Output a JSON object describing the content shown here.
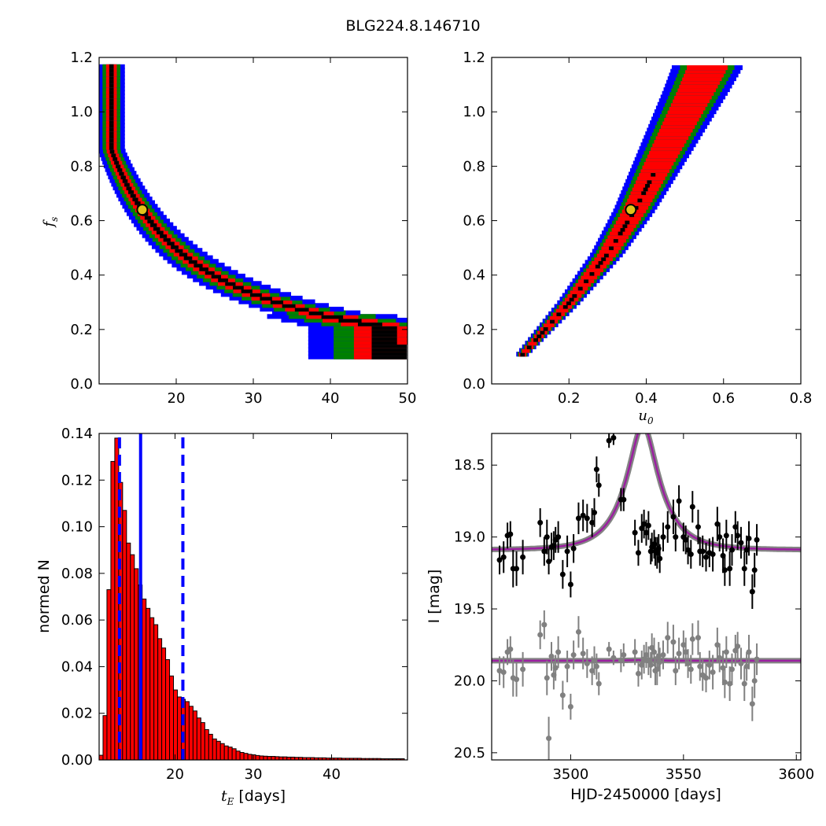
{
  "figure": {
    "title": "BLG224.8.146710"
  },
  "chart_data": [
    {
      "id": "fs_vs_tE",
      "type": "heatmap",
      "xlabel": "",
      "ylabel": "f_s",
      "ylabel_plain": "f",
      "ylabel_sub": "s",
      "xlim": [
        10,
        50
      ],
      "ylim": [
        0.0,
        1.2
      ],
      "xticks": [
        20,
        30,
        40,
        50
      ],
      "xticklabels": [
        "20",
        "30",
        "40",
        "50"
      ],
      "yticks": [
        0.0,
        0.2,
        0.4,
        0.6,
        0.8,
        1.0,
        1.2
      ],
      "yticklabels": [
        "0.0",
        "0.2",
        "0.4",
        "0.6",
        "0.8",
        "1.0",
        "1.2"
      ],
      "confidence_levels": [
        {
          "level": "3-sigma",
          "color": "#0000ff"
        },
        {
          "level": "2-sigma",
          "color": "#008000"
        },
        {
          "level": "1-sigma",
          "color": "#ff0000"
        },
        {
          "level": "best",
          "color": "#000000"
        }
      ],
      "curve_constant": 10.0,
      "curve_offset_x": 0.0,
      "band_width_relative": [
        0.3,
        0.2,
        0.12,
        0.05
      ],
      "y_range_shown": [
        0.1,
        1.17
      ],
      "best_fit": {
        "x": 15.6,
        "y": 0.64,
        "color": "#e3c21a"
      }
    },
    {
      "id": "fs_vs_u0",
      "type": "heatmap",
      "xlabel": "u_0",
      "xlabel_plain": "u",
      "xlabel_sub": "0",
      "ylabel": "",
      "xlim": [
        0.0,
        0.8
      ],
      "ylim": [
        0.0,
        1.2
      ],
      "xticks": [
        0.2,
        0.4,
        0.6,
        0.8
      ],
      "xticklabels": [
        "0.2",
        "0.4",
        "0.6",
        "0.8"
      ],
      "yticks": [
        0.0,
        0.2,
        0.4,
        0.6,
        0.8,
        1.0,
        1.2
      ],
      "yticklabels": [
        "0.0",
        "0.2",
        "0.4",
        "0.6",
        "0.8",
        "1.0",
        "1.2"
      ],
      "confidence_levels": [
        {
          "level": "3-sigma",
          "color": "#0000ff"
        },
        {
          "level": "2-sigma",
          "color": "#008000"
        },
        {
          "level": "1-sigma",
          "color": "#ff0000"
        },
        {
          "level": "best",
          "color": "#000000"
        }
      ],
      "ridge": [
        [
          0.08,
          0.11
        ],
        [
          0.2,
          0.3
        ],
        [
          0.3,
          0.48
        ],
        [
          0.37,
          0.64
        ],
        [
          0.45,
          0.86
        ],
        [
          0.53,
          1.08
        ],
        [
          0.56,
          1.17
        ]
      ],
      "best_fit": {
        "x": 0.36,
        "y": 0.64,
        "color": "#e3c21a"
      }
    },
    {
      "id": "tE_histogram",
      "type": "bar",
      "xlabel": "t_E [days]",
      "xlabel_plain": "t",
      "xlabel_sub": "E",
      "xlabel_suffix": " [days]",
      "ylabel": "normed N",
      "xlim": [
        10.3,
        49.7
      ],
      "ylim": [
        0.0,
        0.14
      ],
      "xticks": [
        20,
        30,
        40
      ],
      "xticklabels": [
        "20",
        "30",
        "40"
      ],
      "yticks": [
        0.0,
        0.02,
        0.04,
        0.06,
        0.08,
        0.1,
        0.12,
        0.14
      ],
      "yticklabels": [
        "0.00",
        "0.02",
        "0.04",
        "0.06",
        "0.08",
        "0.10",
        "0.12",
        "0.14"
      ],
      "bar_color": "#ff0000",
      "bin_start": 10.3,
      "bin_width": 0.5,
      "values": [
        0.002,
        0.019,
        0.073,
        0.128,
        0.138,
        0.119,
        0.107,
        0.093,
        0.088,
        0.082,
        0.075,
        0.069,
        0.065,
        0.061,
        0.058,
        0.052,
        0.048,
        0.043,
        0.036,
        0.03,
        0.027,
        0.026,
        0.025,
        0.023,
        0.021,
        0.018,
        0.016,
        0.013,
        0.011,
        0.009,
        0.008,
        0.007,
        0.006,
        0.0055,
        0.0048,
        0.0038,
        0.0032,
        0.0028,
        0.0024,
        0.0022,
        0.0019,
        0.0017,
        0.0016,
        0.0015,
        0.0015,
        0.0014,
        0.0013,
        0.0013,
        0.0012,
        0.0012,
        0.0011,
        0.0011,
        0.001,
        0.001,
        0.001,
        0.0009,
        0.0009,
        0.0009,
        0.0008,
        0.0008,
        0.0008,
        0.0008,
        0.0007,
        0.0007,
        0.0007,
        0.0007,
        0.0007,
        0.0006,
        0.0006,
        0.0006,
        0.0006,
        0.0006,
        0.0005,
        0.0005,
        0.0005,
        0.0005,
        0.0005,
        0.0005
      ],
      "median_line": {
        "x": 15.6,
        "color": "#0000ff",
        "style": "solid"
      },
      "confidence_lines": [
        {
          "x": 12.9,
          "color": "#0000ff",
          "style": "dashed"
        },
        {
          "x": 21.0,
          "color": "#0000ff",
          "style": "dashed"
        }
      ]
    },
    {
      "id": "light_curve",
      "type": "scatter",
      "xlabel": "HJD-2450000 [days]",
      "ylabel": "I [mag]",
      "xlim": [
        3465,
        3602
      ],
      "ylim": [
        20.55,
        18.28
      ],
      "y_inverted": true,
      "xticks": [
        3500,
        3550,
        3600
      ],
      "xticklabels": [
        "3500",
        "3550",
        "3600"
      ],
      "yticks": [
        18.5,
        19.0,
        19.5,
        20.0,
        20.5
      ],
      "yticklabels": [
        "18.5",
        "19.0",
        "19.5",
        "20.0",
        "20.5"
      ],
      "model": {
        "t0": 3532.0,
        "tE": 15.6,
        "u0": 0.36,
        "fs": 0.64,
        "baseline_mag": 19.09,
        "line_color": "#9b1fa0",
        "band_color": "#777777"
      },
      "residual_offset_mag": 19.86,
      "series": [
        {
          "name": "",
          "color": "#000000",
          "points": [
            [
              3468.5,
              19.16,
              0.1
            ],
            [
              3470.3,
              19.14,
              0.11
            ],
            [
              3472.0,
              18.99,
              0.09
            ],
            [
              3473.3,
              18.98,
              0.09
            ],
            [
              3474.5,
              19.22,
              0.13
            ],
            [
              3476.0,
              19.22,
              0.12
            ],
            [
              3478.8,
              19.14,
              0.12
            ],
            [
              3486.5,
              18.9,
              0.1
            ],
            [
              3488.3,
              19.1,
              0.1
            ],
            [
              3489.5,
              19.0,
              0.12
            ],
            [
              3490.3,
              19.17,
              0.09
            ],
            [
              3491.5,
              19.07,
              0.1
            ],
            [
              3492.5,
              19.06,
              0.1
            ],
            [
              3493.3,
              19.02,
              0.09
            ],
            [
              3494.5,
              19.0,
              0.11
            ],
            [
              3496.5,
              19.26,
              0.1
            ],
            [
              3498.5,
              19.1,
              0.11
            ],
            [
              3500.0,
              19.33,
              0.09
            ],
            [
              3501.3,
              19.08,
              0.1
            ],
            [
              3503.5,
              18.87,
              0.11
            ],
            [
              3505.5,
              18.85,
              0.11
            ],
            [
              3507.3,
              18.87,
              0.1
            ],
            [
              3509.5,
              18.9,
              0.1
            ],
            [
              3510.5,
              18.83,
              0.1
            ],
            [
              3511.5,
              18.53,
              0.09
            ],
            [
              3512.5,
              18.64,
              0.08
            ],
            [
              3517.0,
              18.33,
              0.05
            ],
            [
              3519.0,
              18.31,
              0.05
            ],
            [
              3522.3,
              18.74,
              0.08
            ],
            [
              3523.5,
              18.74,
              0.08
            ],
            [
              3528.5,
              18.97,
              0.09
            ],
            [
              3530.0,
              19.11,
              0.09
            ],
            [
              3531.5,
              18.94,
              0.1
            ],
            [
              3532.5,
              18.91,
              0.1
            ],
            [
              3533.5,
              18.97,
              0.09
            ],
            [
              3534.5,
              18.92,
              0.1
            ],
            [
              3535.5,
              19.1,
              0.09
            ],
            [
              3536.0,
              19.07,
              0.1
            ],
            [
              3537.0,
              19.05,
              0.1
            ],
            [
              3537.5,
              19.1,
              0.1
            ],
            [
              3538.3,
              19.11,
              0.11
            ],
            [
              3539.0,
              19.08,
              0.1
            ],
            [
              3539.5,
              19.15,
              0.1
            ],
            [
              3541.0,
              19.0,
              0.1
            ],
            [
              3543.0,
              18.93,
              0.11
            ],
            [
              3545.5,
              18.86,
              0.12
            ],
            [
              3546.5,
              19.0,
              0.1
            ],
            [
              3548.0,
              18.75,
              0.11
            ],
            [
              3550.0,
              19.0,
              0.1
            ],
            [
              3551.0,
              19.02,
              0.1
            ],
            [
              3552.0,
              19.09,
              0.1
            ],
            [
              3553.3,
              19.12,
              0.1
            ],
            [
              3554.0,
              18.79,
              0.11
            ],
            [
              3556.5,
              18.93,
              0.12
            ],
            [
              3557.3,
              19.1,
              0.1
            ],
            [
              3558.5,
              19.1,
              0.11
            ],
            [
              3560.0,
              19.14,
              0.1
            ],
            [
              3561.5,
              19.11,
              0.1
            ],
            [
              3563.0,
              19.12,
              0.12
            ],
            [
              3565.0,
              18.91,
              0.12
            ],
            [
              3566.0,
              19.0,
              0.1
            ],
            [
              3567.5,
              19.13,
              0.12
            ],
            [
              3568.3,
              19.23,
              0.11
            ],
            [
              3569.0,
              18.99,
              0.11
            ],
            [
              3570.5,
              19.22,
              0.12
            ],
            [
              3571.5,
              19.09,
              0.11
            ],
            [
              3573.0,
              18.93,
              0.11
            ],
            [
              3574.0,
              18.99,
              0.1
            ],
            [
              3575.5,
              19.04,
              0.11
            ],
            [
              3577.0,
              19.22,
              0.12
            ],
            [
              3578.0,
              19.09,
              0.1
            ],
            [
              3579.0,
              19.01,
              0.12
            ],
            [
              3580.5,
              19.38,
              0.12
            ],
            [
              3581.5,
              19.23,
              0.12
            ],
            [
              3582.5,
              19.02,
              0.11
            ]
          ]
        },
        {
          "name": "",
          "color": "#808080",
          "points": [
            [
              3468.5,
              19.93,
              0.1
            ],
            [
              3470.3,
              19.94,
              0.11
            ],
            [
              3472.0,
              19.8,
              0.09
            ],
            [
              3473.3,
              19.78,
              0.09
            ],
            [
              3474.5,
              19.98,
              0.13
            ],
            [
              3476.0,
              19.99,
              0.12
            ],
            [
              3478.8,
              19.92,
              0.12
            ],
            [
              3486.5,
              19.68,
              0.1
            ],
            [
              3488.3,
              19.61,
              0.1
            ],
            [
              3489.5,
              19.98,
              0.12
            ],
            [
              3490.3,
              20.4,
              0.15
            ],
            [
              3491.5,
              19.83,
              0.1
            ],
            [
              3492.5,
              19.96,
              0.1
            ],
            [
              3493.3,
              19.91,
              0.09
            ],
            [
              3494.5,
              19.8,
              0.11
            ],
            [
              3496.5,
              20.1,
              0.1
            ],
            [
              3498.5,
              19.9,
              0.11
            ],
            [
              3500.0,
              20.18,
              0.09
            ],
            [
              3501.3,
              19.82,
              0.1
            ],
            [
              3503.5,
              19.66,
              0.11
            ],
            [
              3505.5,
              19.81,
              0.11
            ],
            [
              3507.3,
              19.88,
              0.1
            ],
            [
              3509.5,
              19.93,
              0.1
            ],
            [
              3510.5,
              19.86,
              0.1
            ],
            [
              3511.5,
              19.9,
              0.09
            ],
            [
              3512.5,
              20.02,
              0.08
            ],
            [
              3517.0,
              19.78,
              0.05
            ],
            [
              3519.0,
              19.84,
              0.05
            ],
            [
              3522.3,
              19.86,
              0.08
            ],
            [
              3523.5,
              19.82,
              0.08
            ],
            [
              3528.5,
              19.8,
              0.09
            ],
            [
              3530.0,
              19.95,
              0.09
            ],
            [
              3531.5,
              19.89,
              0.1
            ],
            [
              3532.5,
              19.85,
              0.1
            ],
            [
              3533.5,
              19.82,
              0.09
            ],
            [
              3534.5,
              19.86,
              0.1
            ],
            [
              3535.5,
              19.89,
              0.09
            ],
            [
              3536.0,
              19.77,
              0.1
            ],
            [
              3537.0,
              19.8,
              0.1
            ],
            [
              3537.5,
              19.93,
              0.1
            ],
            [
              3538.3,
              19.92,
              0.11
            ],
            [
              3539.0,
              19.83,
              0.1
            ],
            [
              3539.5,
              19.87,
              0.1
            ],
            [
              3541.0,
              19.82,
              0.1
            ],
            [
              3543.0,
              19.7,
              0.11
            ],
            [
              3545.5,
              19.73,
              0.12
            ],
            [
              3546.5,
              19.93,
              0.1
            ],
            [
              3548.0,
              19.81,
              0.11
            ],
            [
              3550.0,
              19.75,
              0.1
            ],
            [
              3551.0,
              19.8,
              0.1
            ],
            [
              3552.0,
              19.88,
              0.1
            ],
            [
              3553.3,
              19.92,
              0.1
            ],
            [
              3554.0,
              19.71,
              0.11
            ],
            [
              3556.5,
              19.7,
              0.12
            ],
            [
              3557.3,
              19.9,
              0.1
            ],
            [
              3558.5,
              19.96,
              0.11
            ],
            [
              3560.0,
              19.98,
              0.1
            ],
            [
              3561.5,
              19.89,
              0.1
            ],
            [
              3563.0,
              19.94,
              0.12
            ],
            [
              3565.0,
              19.75,
              0.12
            ],
            [
              3566.0,
              19.84,
              0.1
            ],
            [
              3567.5,
              19.91,
              0.12
            ],
            [
              3568.3,
              20.01,
              0.11
            ],
            [
              3569.0,
              19.8,
              0.11
            ],
            [
              3570.5,
              20.02,
              0.12
            ],
            [
              3571.5,
              19.92,
              0.11
            ],
            [
              3573.0,
              19.79,
              0.11
            ],
            [
              3574.0,
              19.76,
              0.1
            ],
            [
              3575.5,
              19.88,
              0.11
            ],
            [
              3577.0,
              20.02,
              0.12
            ],
            [
              3578.0,
              19.9,
              0.1
            ],
            [
              3579.0,
              19.8,
              0.12
            ],
            [
              3580.5,
              20.16,
              0.12
            ],
            [
              3581.5,
              20.0,
              0.12
            ],
            [
              3582.5,
              19.85,
              0.11
            ]
          ]
        }
      ]
    }
  ]
}
